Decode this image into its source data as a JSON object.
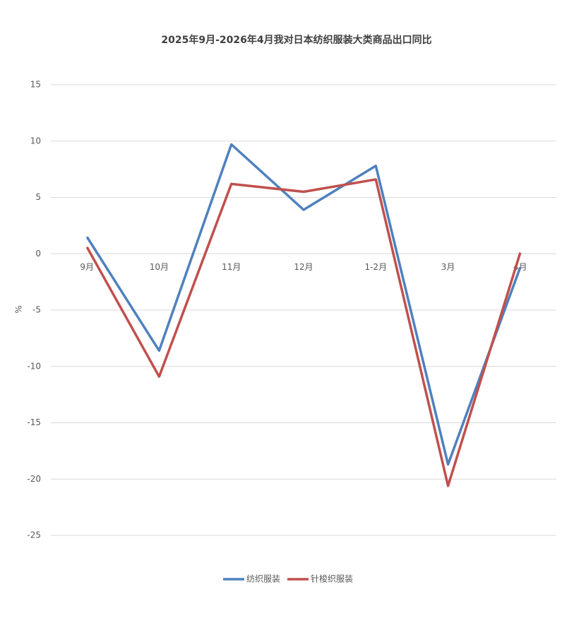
{
  "chart_data": {
    "type": "line",
    "title": "2025年9月-2026年4月我对日本纺织服装大类商品出口同比",
    "y_label": "%",
    "categories": [
      "9月",
      "10月",
      "11月",
      "12月",
      "1-2月",
      "3月",
      "4月"
    ],
    "series": [
      {
        "name": "纺织服装",
        "color": "#4f81bd",
        "values": [
          1.5,
          -8.6,
          9.7,
          3.9,
          7.8,
          -18.7,
          -1.2
        ]
      },
      {
        "name": "针梭织服装",
        "color": "#c0504d",
        "values": [
          0.6,
          -10.9,
          6.2,
          5.5,
          6.6,
          -20.6,
          0.1
        ]
      }
    ],
    "ylim": [
      -25,
      15
    ],
    "yticks": [
      -25,
      -20,
      -15,
      -10,
      -5,
      0,
      5,
      10,
      15
    ],
    "grid": true,
    "legend": "bottom"
  }
}
